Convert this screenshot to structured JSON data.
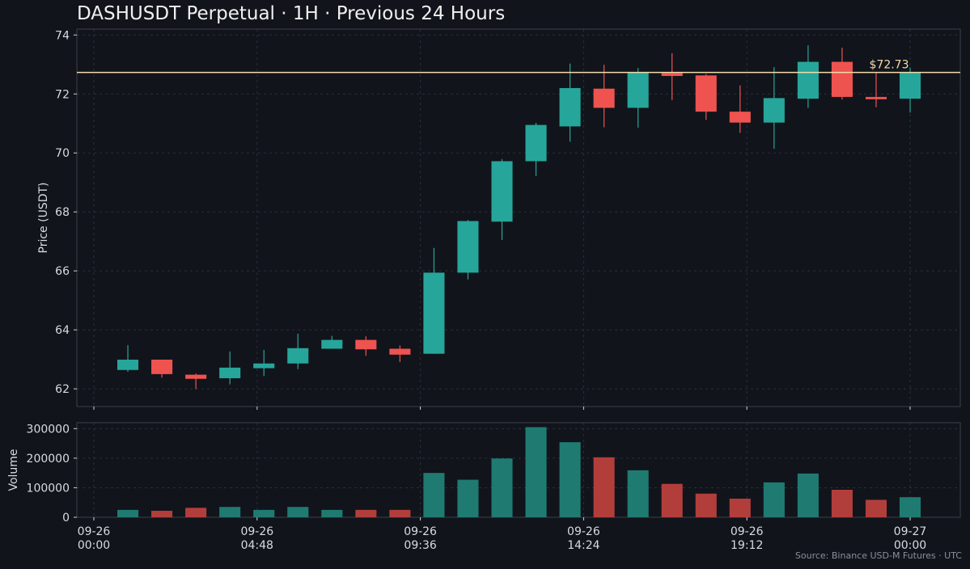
{
  "chart_data": {
    "type": "candlestick",
    "title": "DASHUSDT Perpetual · 1H · Previous 24 Hours",
    "source": "Source: Binance USD-M Futures · UTC",
    "ylabel": "Price (USDT)",
    "volume_ylabel": "Volume",
    "price_ylim": [
      61.4,
      74.2
    ],
    "volume_ylim": [
      0,
      320000
    ],
    "price_ticks": [
      62,
      64,
      66,
      68,
      70,
      72,
      74
    ],
    "volume_ticks": [
      0,
      100000,
      200000,
      300000
    ],
    "x_tick_labels": [
      [
        "09-26",
        "00:00"
      ],
      [
        "09-26",
        "04:48"
      ],
      [
        "09-26",
        "09:36"
      ],
      [
        "09-26",
        "14:24"
      ],
      [
        "09-26",
        "19:12"
      ],
      [
        "09-27",
        "00:00"
      ]
    ],
    "current_price": 72.73,
    "current_price_label": "$72.73",
    "colors": {
      "up": "#26a69a",
      "down": "#ef5350",
      "price_line": "#f3dca7",
      "background": "#11141b",
      "grid": "#2a2f3a"
    },
    "grid": true,
    "candles": [
      {
        "hour": 1,
        "open": 62.64,
        "high": 63.48,
        "low": 62.58,
        "close": 62.99,
        "volume": 25000
      },
      {
        "hour": 2,
        "open": 62.99,
        "high": 62.99,
        "low": 62.38,
        "close": 62.5,
        "volume": 22000
      },
      {
        "hour": 3,
        "open": 62.48,
        "high": 62.52,
        "low": 61.99,
        "close": 62.34,
        "volume": 32000
      },
      {
        "hour": 4,
        "open": 62.36,
        "high": 63.27,
        "low": 62.15,
        "close": 62.72,
        "volume": 35000
      },
      {
        "hour": 5,
        "open": 62.7,
        "high": 63.32,
        "low": 62.43,
        "close": 62.86,
        "volume": 25000
      },
      {
        "hour": 6,
        "open": 62.86,
        "high": 63.87,
        "low": 62.67,
        "close": 63.38,
        "volume": 35000
      },
      {
        "hour": 7,
        "open": 63.36,
        "high": 63.8,
        "low": 63.36,
        "close": 63.66,
        "volume": 25000
      },
      {
        "hour": 8,
        "open": 63.66,
        "high": 63.78,
        "low": 63.12,
        "close": 63.34,
        "volume": 25000
      },
      {
        "hour": 9,
        "open": 63.36,
        "high": 63.47,
        "low": 62.91,
        "close": 63.16,
        "volume": 25000
      },
      {
        "hour": 10,
        "open": 63.19,
        "high": 66.78,
        "low": 63.19,
        "close": 65.94,
        "volume": 150000
      },
      {
        "hour": 11,
        "open": 65.94,
        "high": 67.73,
        "low": 65.71,
        "close": 67.69,
        "volume": 127000
      },
      {
        "hour": 12,
        "open": 67.67,
        "high": 69.79,
        "low": 67.05,
        "close": 69.72,
        "volume": 199000
      },
      {
        "hour": 13,
        "open": 69.72,
        "high": 71.02,
        "low": 69.22,
        "close": 70.95,
        "volume": 305000
      },
      {
        "hour": 14,
        "open": 70.9,
        "high": 73.03,
        "low": 70.38,
        "close": 72.2,
        "volume": 254000
      },
      {
        "hour": 15,
        "open": 72.18,
        "high": 72.99,
        "low": 70.87,
        "close": 71.53,
        "volume": 203000
      },
      {
        "hour": 16,
        "open": 71.53,
        "high": 72.88,
        "low": 70.86,
        "close": 72.73,
        "volume": 159000
      },
      {
        "hour": 17,
        "open": 72.71,
        "high": 73.38,
        "low": 71.79,
        "close": 72.61,
        "volume": 113000
      },
      {
        "hour": 18,
        "open": 72.63,
        "high": 72.68,
        "low": 71.12,
        "close": 71.4,
        "volume": 80000
      },
      {
        "hour": 19,
        "open": 71.4,
        "high": 72.29,
        "low": 70.68,
        "close": 71.03,
        "volume": 63000
      },
      {
        "hour": 20,
        "open": 71.03,
        "high": 72.91,
        "low": 70.14,
        "close": 71.86,
        "volume": 118000
      },
      {
        "hour": 21,
        "open": 71.84,
        "high": 73.65,
        "low": 71.53,
        "close": 73.09,
        "volume": 148000
      },
      {
        "hour": 22,
        "open": 73.09,
        "high": 73.57,
        "low": 71.81,
        "close": 71.9,
        "volume": 93000
      },
      {
        "hour": 23,
        "open": 71.9,
        "high": 72.73,
        "low": 71.55,
        "close": 71.82,
        "volume": 59000
      },
      {
        "hour": 24,
        "open": 71.84,
        "high": 72.9,
        "low": 71.37,
        "close": 72.73,
        "volume": 68000
      }
    ]
  }
}
